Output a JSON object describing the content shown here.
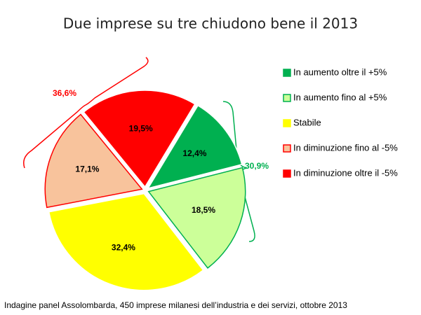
{
  "chart_data": {
    "type": "pie",
    "title": "Due imprese su tre chiudono bene il 2013",
    "footnote": "Indagine panel Assolombarda, 450 imprese milanesi dell’industria e dei servizi, ottobre 2013",
    "categories": [
      "In aumento oltre il +5%",
      "In aumento fino al +5%",
      "Stabile",
      "In diminuzione fino al -5%",
      "In diminuzione oltre il -5%"
    ],
    "values": [
      12.4,
      18.5,
      32.4,
      17.1,
      19.5
    ],
    "value_labels": [
      "12,4%",
      "18,5%",
      "32,4%",
      "17,1%",
      "19,5%"
    ],
    "colors": [
      "#00b050",
      "#ccff99",
      "#ffff00",
      "#f8c39c",
      "#ff0000"
    ],
    "edge_colors": [
      "#ffffff",
      "#00b050",
      "#ffffff",
      "#ff0000",
      "#ffffff"
    ],
    "annotations": [
      "36,6%",
      "30,9%"
    ],
    "legend": "right"
  }
}
